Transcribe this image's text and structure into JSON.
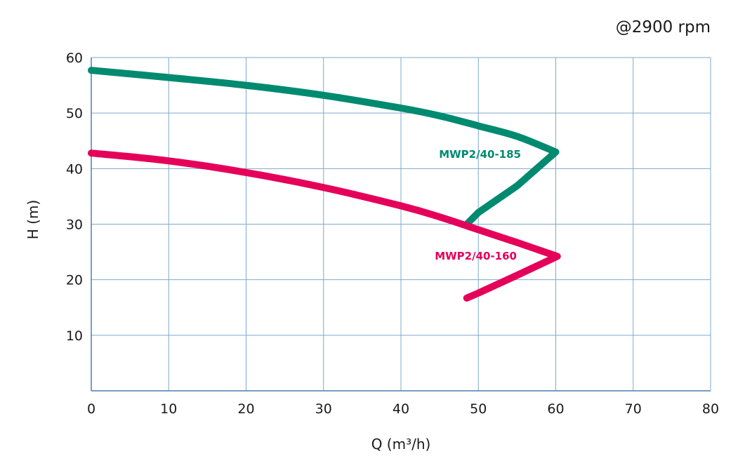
{
  "chart_data": {
    "type": "line",
    "annotation": "@2900 rpm",
    "xlabel": "Q (m³/h)",
    "ylabel": "H (m)",
    "xlim": [
      0,
      80
    ],
    "ylim": [
      0,
      60
    ],
    "x_ticks": [
      0,
      10,
      20,
      30,
      40,
      50,
      60,
      70,
      80
    ],
    "y_ticks": [
      10,
      20,
      30,
      40,
      50,
      60
    ],
    "grid": true,
    "series": [
      {
        "name": "MWP2/40-185",
        "color": "#008a70",
        "x": [
          0,
          10,
          20,
          30,
          40,
          45,
          50,
          55,
          60,
          55,
          50,
          48.5
        ],
        "y": [
          57.7,
          56.4,
          55.0,
          53.2,
          50.9,
          49.5,
          47.7,
          45.8,
          43.0,
          36.9,
          32.1,
          30.0
        ]
      },
      {
        "name": "MWP2/40-160",
        "color": "#e5005a",
        "x": [
          0,
          10,
          20,
          30,
          40,
          45,
          50,
          55,
          60.2,
          55,
          50,
          48.5
        ],
        "y": [
          42.8,
          41.4,
          39.3,
          36.6,
          33.3,
          31.3,
          29.0,
          26.7,
          24.2,
          20.8,
          17.6,
          16.7
        ]
      }
    ]
  }
}
